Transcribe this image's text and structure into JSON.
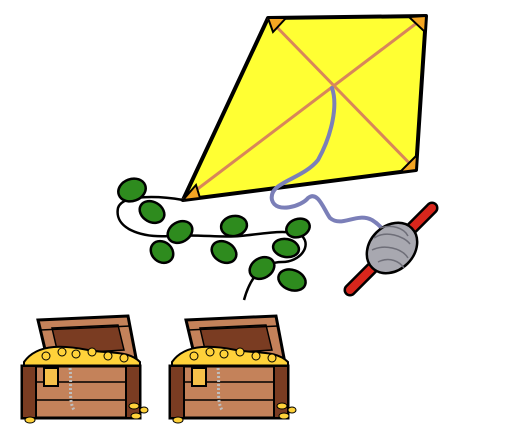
{
  "scene": {
    "elements": [
      "kite",
      "kite-tail",
      "string-reel",
      "treasure-chest",
      "treasure-chest"
    ]
  },
  "colors": {
    "kite_fill": "#ffff33",
    "kite_cross": "#d8865a",
    "kite_corner": "#f5a623",
    "leaf": "#2e8b1e",
    "string": "#7b7fb8",
    "spool_yarn": "#a8a8b0",
    "spool_rod": "#d8261c",
    "chest_wood": "#c4825a",
    "chest_dark": "#7a3c22",
    "gold": "#ffd23a"
  }
}
